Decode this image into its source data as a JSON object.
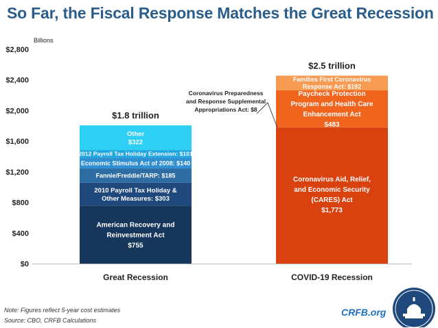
{
  "title": "So Far, the Fiscal Response Matches the Great Recession",
  "chart_data": {
    "type": "bar",
    "stacked": true,
    "ylabel": "Billions",
    "ylim": [
      0,
      2800
    ],
    "yticks": [
      0,
      400,
      800,
      1200,
      1600,
      2000,
      2400,
      2800
    ],
    "ytick_labels": [
      "$0",
      "$400",
      "$800",
      "$1,200",
      "$1,600",
      "$2,000",
      "$2,400",
      "$2,800"
    ],
    "categories": [
      "Great Recession",
      "COVID-19 Recession"
    ],
    "totals": [
      "$1.8 trillion",
      "$2.5 trillion"
    ],
    "stacks": [
      {
        "category": "Great Recession",
        "segments": [
          {
            "name": "American Recovery and Reinvestment Act",
            "value": 755,
            "lines": [
              "American Recovery and",
              "Reinvestment Act",
              "$755"
            ],
            "color": "#16365c",
            "text_color": "#ffffff"
          },
          {
            "name": "2010 Payroll Tax Holiday & Other Measures",
            "value": 303,
            "lines": [
              "2010 Payroll Tax Holiday &",
              "Other Measures: $303"
            ],
            "color": "#1f497d",
            "text_color": "#ffffff"
          },
          {
            "name": "Fannie/Freddie/TARP",
            "value": 185,
            "lines": [
              "Fannie/Freddie/TARP: $185"
            ],
            "color": "#2e6da4",
            "text_color": "#ffffff"
          },
          {
            "name": "Economic Stimulus Act of 2008",
            "value": 140,
            "lines": [
              "Economic Stimulus Act of 2008: $140"
            ],
            "color": "#2f8fd0",
            "text_color": "#ffffff"
          },
          {
            "name": "2012 Payroll Tax Holiday Extension",
            "value": 101,
            "lines": [
              "2012 Payroll Tax Holiday Extension: $101"
            ],
            "color": "#1fa6e0",
            "text_color": "#ffffff"
          },
          {
            "name": "Other",
            "value": 322,
            "lines": [
              "Other",
              "$322"
            ],
            "color": "#2ecff5",
            "text_color": "#ffffff"
          }
        ]
      },
      {
        "category": "COVID-19 Recession",
        "segments": [
          {
            "name": "Coronavirus Aid, Relief, and Economic Security (CARES) Act",
            "value": 1773,
            "lines": [
              "Coronavirus Aid, Relief,",
              "and Economic Security",
              "(CARES) Act",
              "$1,773"
            ],
            "color": "#d9410f",
            "text_color": "#ffffff"
          },
          {
            "name": "Coronavirus Preparedness and Response Supplemental Appropriations Act",
            "value": 8,
            "lines": [],
            "color": "#d9410f",
            "text_color": "#ffffff"
          },
          {
            "name": "Paycheck Protection Program and Health Care Enhancement Act",
            "value": 483,
            "lines": [
              "Paycheck Protection",
              "Program and Health Care",
              "Enhancement Act",
              "$483"
            ],
            "color": "#f0641e",
            "text_color": "#ffffff"
          },
          {
            "name": "Families First Coronavirus Response Act",
            "value": 192,
            "lines": [
              "Families First Coronavirus",
              "Response Act: $192"
            ],
            "color": "#f79a52",
            "text_color": "#ffffff"
          }
        ]
      }
    ],
    "annotation": {
      "lines": [
        "Coronavirus Preparedness",
        "and Response Supplemental",
        "Appropriations Act: $8"
      ],
      "value": 8
    }
  },
  "footer": {
    "note": "Note: Figures reflect 5-year cost estimates",
    "source": "Source: CBO, CRFB Calculations",
    "brand": "CRFB.org"
  }
}
